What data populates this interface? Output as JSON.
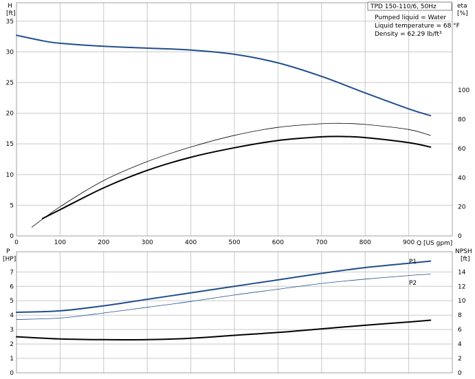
{
  "header": {
    "model": "TPD 150-110/6, 50Hz",
    "conditions": [
      "Pumped liquid = Water",
      "Liquid temperature = 68 °F",
      "Density = 62.29 lb/ft³"
    ]
  },
  "colors": {
    "blue": "#1f4e8c",
    "black": "#000000",
    "grid": "#c8c8c8"
  },
  "chart_data": [
    {
      "type": "line",
      "name": "head-efficiency",
      "x_axis": {
        "label": "Q [US gpm]",
        "range": [
          0,
          1000
        ],
        "ticks": [
          "0",
          "100",
          "200",
          "300",
          "400",
          "500",
          "600",
          "700",
          "800",
          "900"
        ]
      },
      "y_left": {
        "unit_top": "H",
        "unit_bottom": "[ft]",
        "range": [
          0,
          38
        ],
        "ticks": [
          "0",
          "5",
          "10",
          "15",
          "20",
          "25",
          "30",
          "35"
        ]
      },
      "y_right": {
        "unit_top": "eta",
        "unit_bottom": "[%]",
        "range": [
          0,
          160
        ],
        "ticks": [
          "0",
          "20",
          "40",
          "60",
          "80",
          "100"
        ]
      },
      "grid": true,
      "series": [
        {
          "key": "H",
          "axis": "left",
          "color": "#1f4e8c",
          "width": 2,
          "x": [
            0,
            60,
            100,
            200,
            300,
            400,
            500,
            600,
            700,
            800,
            900,
            950
          ],
          "y": [
            32.7,
            31.8,
            31.4,
            30.9,
            30.6,
            30.3,
            29.6,
            28.2,
            26.0,
            23.3,
            20.7,
            19.6
          ]
        },
        {
          "key": "eta",
          "axis": "right",
          "color": "#000000",
          "width": 0.8,
          "x": [
            35,
            100,
            200,
            300,
            400,
            500,
            600,
            700,
            750,
            800,
            900,
            950
          ],
          "y": [
            6,
            20,
            38,
            51,
            61,
            69,
            74.5,
            77,
            77.2,
            76.5,
            73,
            69
          ]
        },
        {
          "key": "eta-pump",
          "axis": "right",
          "color": "#000000",
          "width": 2,
          "x": [
            60,
            100,
            200,
            300,
            400,
            500,
            600,
            700,
            750,
            800,
            900,
            950
          ],
          "y": [
            12,
            18,
            33,
            45,
            54,
            60.5,
            65.5,
            68,
            68.2,
            67.5,
            64,
            61
          ]
        }
      ]
    },
    {
      "type": "line",
      "name": "power-npsh",
      "x_axis": {
        "range": [
          0,
          1000
        ],
        "ticks": [
          "0",
          "100",
          "200",
          "300",
          "400",
          "500",
          "600",
          "700",
          "800",
          "900"
        ]
      },
      "y_left": {
        "unit_top": "P",
        "unit_bottom": "[HP]",
        "range": [
          0,
          8.4
        ],
        "ticks": [
          "0",
          "1",
          "2",
          "3",
          "4",
          "5",
          "6",
          "7"
        ]
      },
      "y_right": {
        "unit_top": "NPSH",
        "unit_bottom": "[ft]",
        "range": [
          0,
          16.8
        ],
        "ticks": [
          "0",
          "2",
          "4",
          "6",
          "8",
          "10",
          "12",
          "14"
        ]
      },
      "grid": true,
      "series": [
        {
          "key": "P1",
          "name": "P1",
          "axis": "left",
          "color": "#1f4e8c",
          "width": 2,
          "x": [
            0,
            100,
            200,
            300,
            400,
            500,
            600,
            700,
            800,
            900,
            950
          ],
          "y": [
            4.2,
            4.3,
            4.65,
            5.1,
            5.55,
            6.0,
            6.45,
            6.9,
            7.3,
            7.6,
            7.75
          ]
        },
        {
          "key": "P2",
          "name": "P2",
          "axis": "left",
          "color": "#1f4e8c",
          "width": 0.8,
          "x": [
            0,
            100,
            200,
            300,
            400,
            500,
            600,
            700,
            800,
            900,
            950
          ],
          "y": [
            3.7,
            3.8,
            4.15,
            4.55,
            4.95,
            5.4,
            5.8,
            6.2,
            6.5,
            6.75,
            6.85
          ]
        },
        {
          "key": "NPSH",
          "axis": "right",
          "color": "#000000",
          "width": 2,
          "x": [
            0,
            100,
            200,
            300,
            400,
            500,
            600,
            700,
            800,
            900,
            950
          ],
          "y": [
            5.0,
            4.7,
            4.6,
            4.6,
            4.8,
            5.2,
            5.6,
            6.1,
            6.6,
            7.05,
            7.3
          ]
        }
      ]
    }
  ]
}
